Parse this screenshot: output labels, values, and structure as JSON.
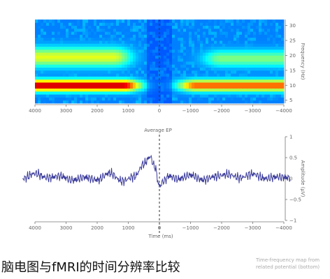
{
  "caption": "脑电图与fMRI的时间分辨率比较",
  "side_note": [
    "Time-frequency map from",
    "related potential (bottom)"
  ],
  "colors": {
    "trace": "#3c3c9c",
    "axis": "#777777"
  },
  "chart_data": [
    {
      "type": "heatmap",
      "title": "",
      "xlabel": "",
      "ylabel": "Frequency (Hz)",
      "xlim": [
        4000,
        -4000
      ],
      "x_ticks": [
        4000,
        3000,
        2000,
        1000,
        0,
        -1000,
        -2000,
        -3000,
        -4000
      ],
      "x_tick_labels": [
        "4000",
        "3000",
        "2000",
        "1000",
        "0",
        "−1000",
        "−2000",
        "−3000",
        "−4000"
      ],
      "ylim": [
        4,
        32
      ],
      "y_ticks": [
        5,
        10,
        15,
        20,
        25,
        30
      ],
      "y_tick_labels": [
        "5",
        "10",
        "15",
        "20",
        "25",
        "30"
      ],
      "marker_x": 0,
      "colormap": "jet",
      "value_range": [
        0,
        1
      ],
      "description_of_pattern": [
        {
          "x": [
            4000,
            1200
          ],
          "freq": [
            9,
            11
          ],
          "level": 0.95
        },
        {
          "x": [
            -1200,
            -4000
          ],
          "freq": [
            9,
            11
          ],
          "level": 0.8
        },
        {
          "x": [
            4000,
            1500
          ],
          "freq": [
            17,
            22
          ],
          "level": 0.6
        },
        {
          "x": [
            -2000,
            -4000
          ],
          "freq": [
            17,
            21
          ],
          "level": 0.5
        }
      ]
    },
    {
      "type": "line",
      "title": "Average EP",
      "xlabel": "Time (ms)",
      "ylabel": "Amplitude (μV)",
      "xlim": [
        4000,
        -4000
      ],
      "x_ticks": [
        4000,
        3000,
        2000,
        1000,
        0,
        -1000,
        -2000,
        -3000,
        -4000
      ],
      "x_tick_labels": [
        "4000",
        "3000",
        "2000",
        "1000",
        "0",
        "−1000",
        "−2000",
        "−3000",
        "−4000"
      ],
      "ylim": [
        -1,
        1
      ],
      "y_ticks": [
        1,
        0.5,
        0,
        -0.5,
        -1
      ],
      "y_tick_labels": [
        "1",
        "0.5",
        "0",
        "−0.5",
        "−1"
      ],
      "marker_x": 0,
      "series": [
        {
          "name": "",
          "x": [
            4400,
            4000,
            3600,
            3200,
            2800,
            2400,
            2000,
            1600,
            1200,
            800,
            500,
            300,
            150,
            0,
            -150,
            -300,
            -600,
            -1000,
            -1400,
            -1800,
            -2200,
            -2600,
            -3000,
            -3400,
            -3800,
            -4200
          ],
          "y": [
            0.0,
            0.12,
            0.02,
            0.06,
            -0.04,
            0.03,
            -0.03,
            0.13,
            -0.06,
            0.05,
            0.35,
            0.52,
            0.28,
            -0.18,
            -0.05,
            0.06,
            -0.01,
            0.08,
            -0.03,
            0.05,
            0.1,
            0.02,
            0.11,
            0.0,
            0.04,
            0.02
          ]
        }
      ]
    }
  ]
}
